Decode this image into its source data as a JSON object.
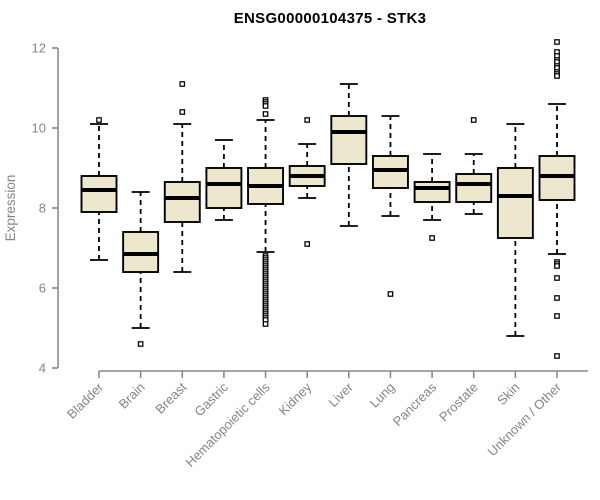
{
  "chart_data": {
    "type": "boxplot",
    "title": "ENSG00000104375 - STK3",
    "ylabel": "Expression",
    "xlabel": "",
    "ylim": [
      4,
      12
    ],
    "yticks": [
      4,
      6,
      8,
      10,
      12
    ],
    "grid": false,
    "legend": "none",
    "categories": [
      "Bladder",
      "Brain",
      "Breast",
      "Gastric",
      "Hematopoietic cells",
      "Kidney",
      "Liver",
      "Lung",
      "Pancreas",
      "Prostate",
      "Skin",
      "Unknown / Other"
    ],
    "series": [
      {
        "name": "Bladder",
        "whislo": 6.7,
        "q1": 7.9,
        "med": 8.45,
        "q3": 8.8,
        "whishi": 10.1,
        "outliers": [
          10.2
        ]
      },
      {
        "name": "Brain",
        "whislo": 5.0,
        "q1": 6.4,
        "med": 6.85,
        "q3": 7.4,
        "whishi": 8.4,
        "outliers": [
          4.6
        ]
      },
      {
        "name": "Breast",
        "whislo": 6.4,
        "q1": 7.65,
        "med": 8.25,
        "q3": 8.65,
        "whishi": 10.1,
        "outliers": [
          10.4,
          11.1
        ]
      },
      {
        "name": "Gastric",
        "whislo": 7.7,
        "q1": 8.0,
        "med": 8.6,
        "q3": 9.0,
        "whishi": 9.7,
        "outliers": []
      },
      {
        "name": "Hematopoietic cells",
        "whislo": 6.9,
        "q1": 8.1,
        "med": 8.55,
        "q3": 9.0,
        "whishi": 10.2,
        "outliers": [
          10.7,
          10.65,
          10.6,
          10.55,
          10.35,
          6.8,
          6.75,
          6.7,
          6.65,
          6.6,
          6.55,
          6.5,
          6.45,
          6.4,
          6.35,
          6.3,
          6.25,
          6.2,
          6.15,
          6.1,
          6.05,
          6.0,
          5.95,
          5.9,
          5.85,
          5.8,
          5.75,
          5.7,
          5.65,
          5.6,
          5.55,
          5.5,
          5.45,
          5.4,
          5.35,
          5.3,
          5.25,
          5.2,
          5.1
        ]
      },
      {
        "name": "Kidney",
        "whislo": 8.25,
        "q1": 8.55,
        "med": 8.8,
        "q3": 9.05,
        "whishi": 9.6,
        "outliers": [
          10.2,
          7.1
        ]
      },
      {
        "name": "Liver",
        "whislo": 7.55,
        "q1": 9.1,
        "med": 9.9,
        "q3": 10.3,
        "whishi": 11.1,
        "outliers": []
      },
      {
        "name": "Lung",
        "whislo": 7.8,
        "q1": 8.5,
        "med": 8.95,
        "q3": 9.3,
        "whishi": 10.3,
        "outliers": [
          5.85
        ]
      },
      {
        "name": "Pancreas",
        "whislo": 7.7,
        "q1": 8.15,
        "med": 8.5,
        "q3": 8.65,
        "whishi": 9.35,
        "outliers": [
          7.25
        ]
      },
      {
        "name": "Prostate",
        "whislo": 7.85,
        "q1": 8.15,
        "med": 8.6,
        "q3": 8.85,
        "whishi": 9.35,
        "outliers": [
          10.2
        ]
      },
      {
        "name": "Skin",
        "whislo": 4.8,
        "q1": 7.25,
        "med": 8.3,
        "q3": 9.0,
        "whishi": 10.1,
        "outliers": []
      },
      {
        "name": "Unknown / Other",
        "whislo": 6.85,
        "q1": 8.2,
        "med": 8.8,
        "q3": 9.3,
        "whishi": 10.6,
        "outliers": [
          12.15,
          11.9,
          11.8,
          11.7,
          11.65,
          11.55,
          11.5,
          11.4,
          11.35,
          11.3,
          6.65,
          6.6,
          6.55,
          6.25,
          5.75,
          5.3,
          4.3
        ]
      }
    ],
    "colors": {
      "box_fill": "#ece7cd",
      "box_stroke": "#000000",
      "axis": "#8a8a8a",
      "tick_label": "#858585",
      "title": "#000000"
    }
  }
}
